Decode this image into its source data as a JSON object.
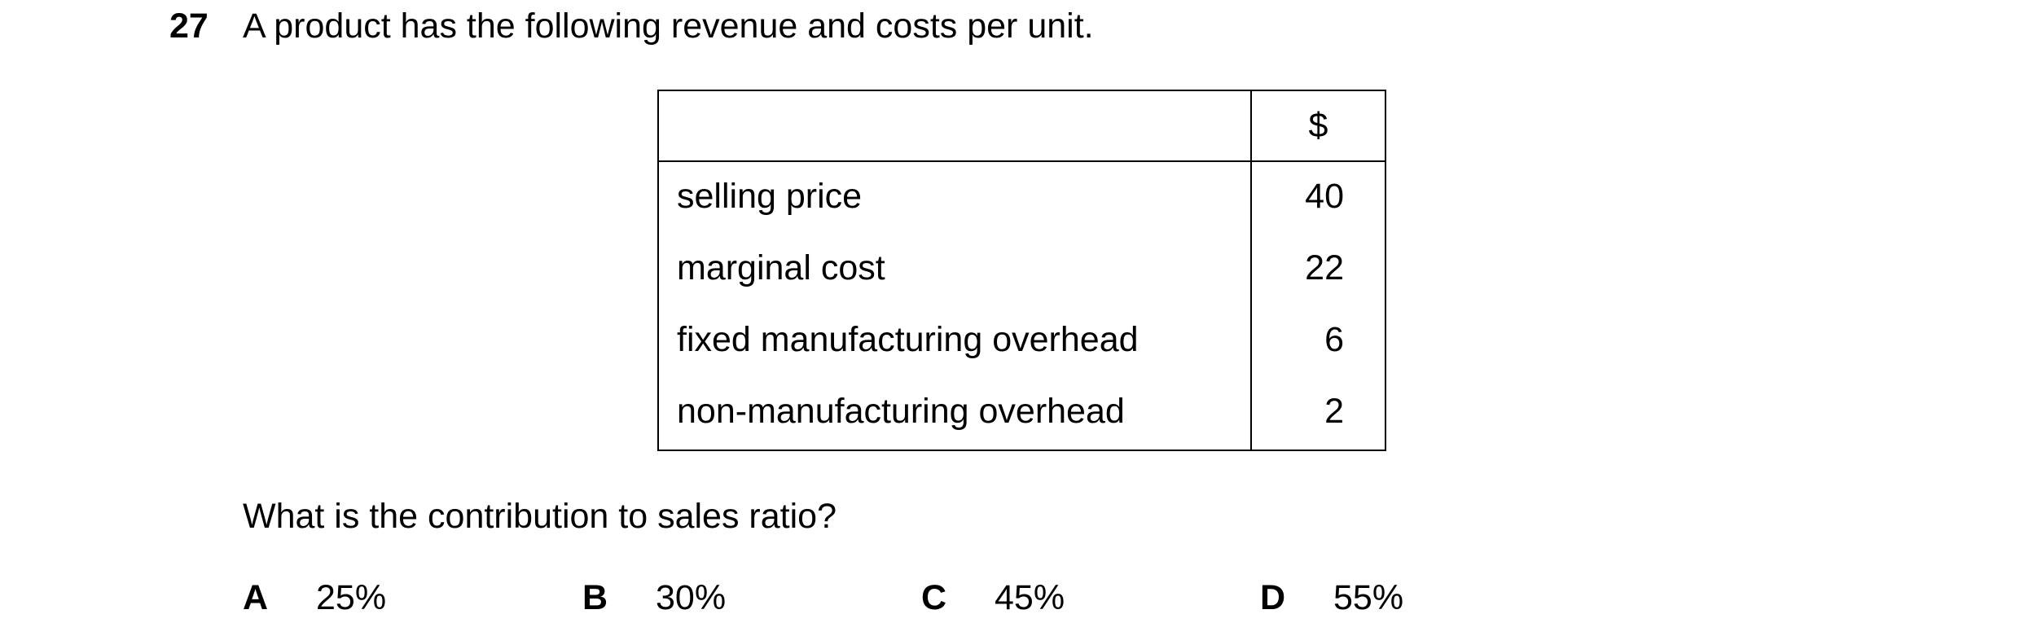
{
  "question": {
    "number": "27",
    "stem": "A product has the following revenue and costs per unit.",
    "prompt": "What is the contribution to sales ratio?"
  },
  "table": {
    "currency_header": "$",
    "rows": [
      {
        "item": "selling price",
        "amount": "40"
      },
      {
        "item": "marginal cost",
        "amount": "22"
      },
      {
        "item": "fixed manufacturing overhead",
        "amount": "6"
      },
      {
        "item": "non-manufacturing overhead",
        "amount": "2"
      }
    ]
  },
  "options": [
    {
      "letter": "A",
      "text": "25%"
    },
    {
      "letter": "B",
      "text": "30%"
    },
    {
      "letter": "C",
      "text": "45%"
    },
    {
      "letter": "D",
      "text": "55%"
    }
  ]
}
